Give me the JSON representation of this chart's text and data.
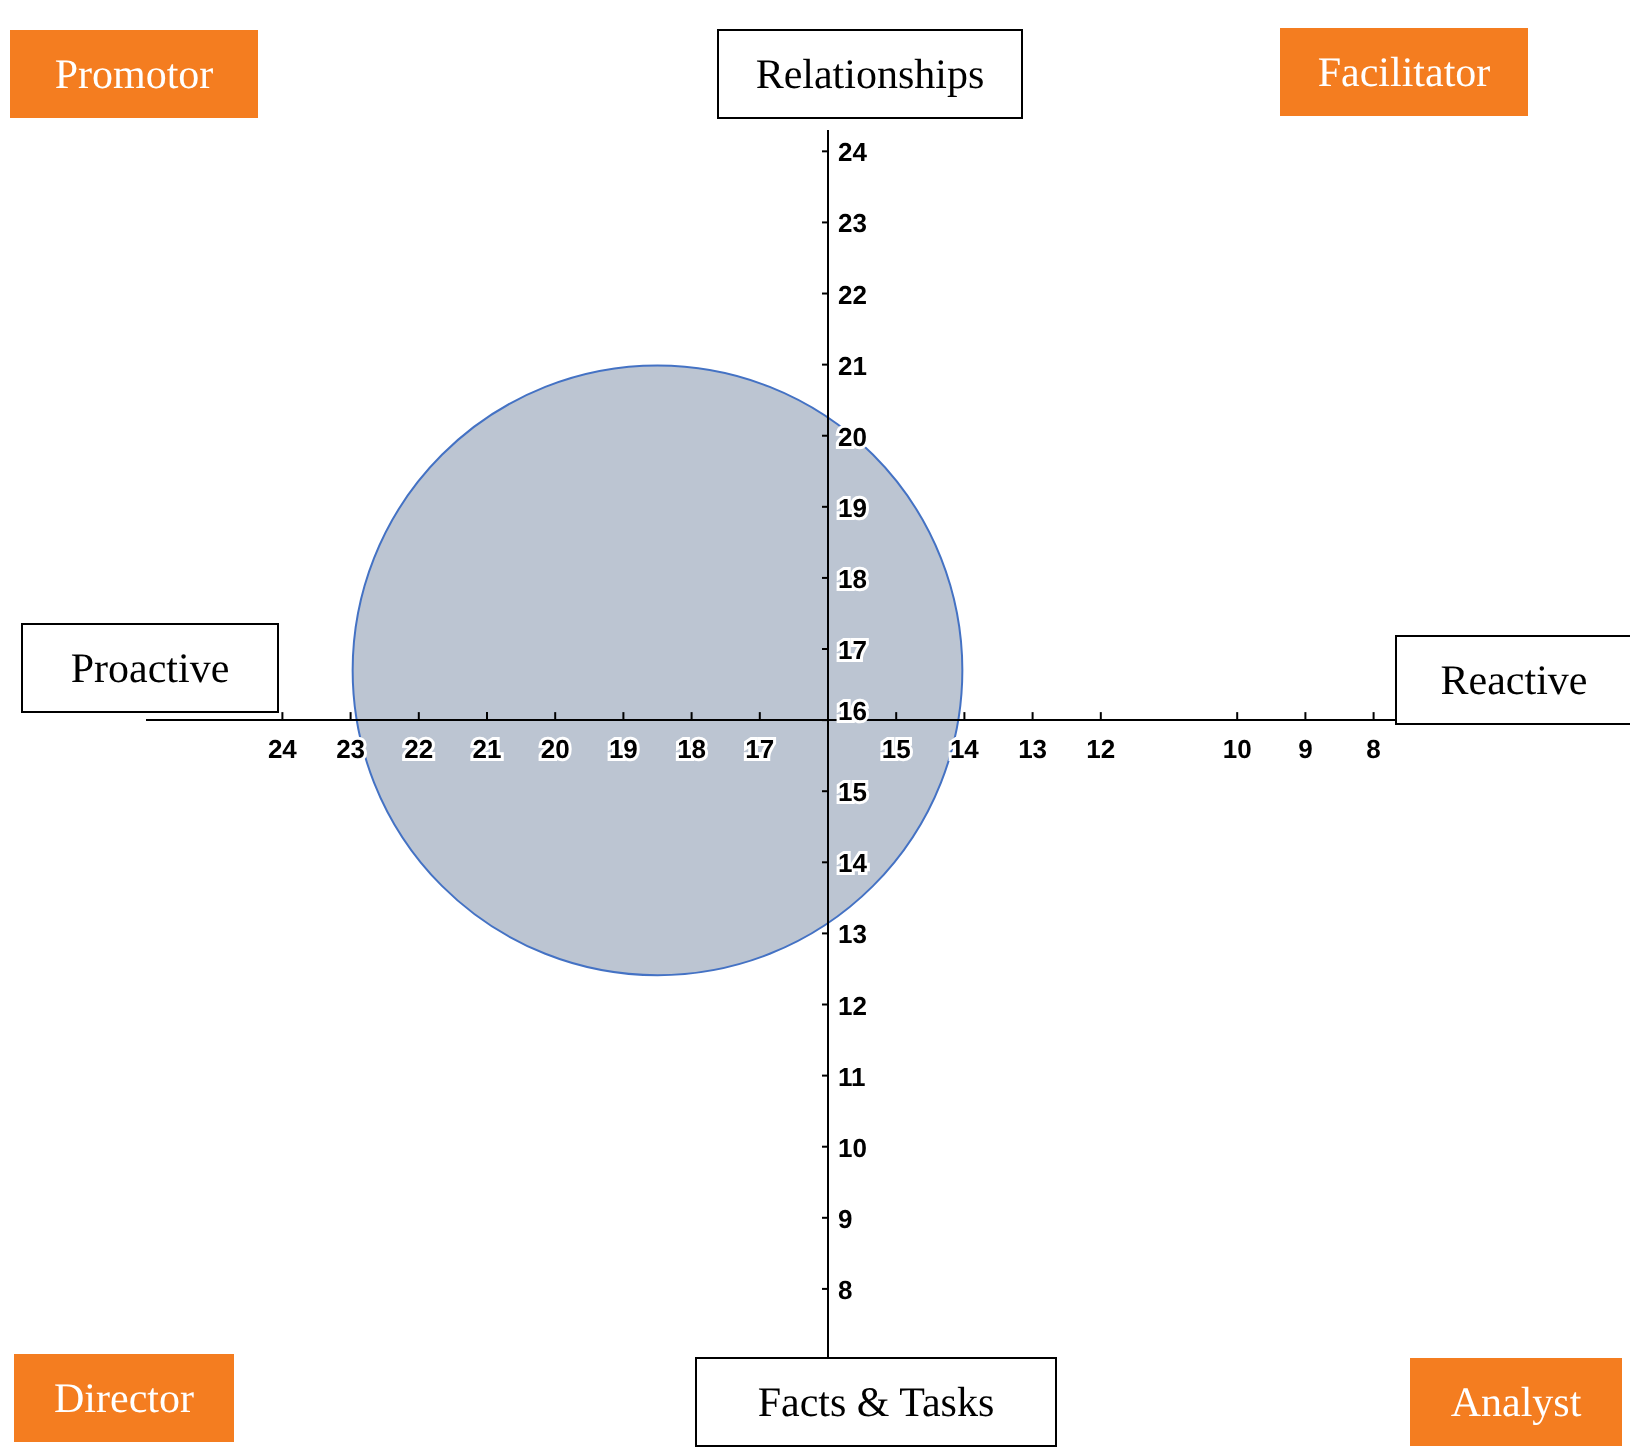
{
  "chart_data": {
    "type": "bubble",
    "series": [
      {
        "color": "#bcc5d2",
        "x": [
          18.5
        ],
        "values": [
          16.7
        ],
        "sizes": [
          1
        ]
      }
    ],
    "xlim": [
      26,
      6
    ],
    "ylim": [
      7,
      24.3
    ],
    "xticks": [
      24,
      23,
      22,
      21,
      20,
      19,
      18,
      17,
      15,
      14,
      13,
      12,
      10,
      9,
      8
    ],
    "yticks": [
      8,
      9,
      10,
      11,
      12,
      13,
      14,
      15,
      16,
      17,
      18,
      19,
      20,
      21,
      22,
      23,
      24
    ],
    "annotations": [
      "Relationships",
      "Facts & Tasks",
      "Proactive",
      "Reactive",
      "Promotor",
      "Facilitator",
      "Director",
      "Analyst"
    ]
  }
}
